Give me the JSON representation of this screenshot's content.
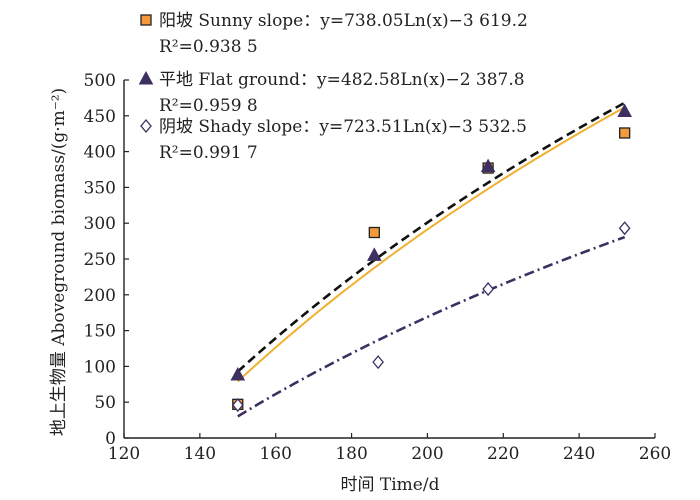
{
  "chart_data": {
    "type": "scatter",
    "xlabel": "时间 Time/d",
    "ylabel": "地上生物量 Aboveground biomass/(g·m⁻²)",
    "xlim": [
      120,
      260
    ],
    "ylim": [
      0,
      500
    ],
    "xticks": [
      120,
      140,
      160,
      180,
      200,
      220,
      240,
      260
    ],
    "yticks": [
      0,
      50,
      100,
      150,
      200,
      250,
      300,
      350,
      400,
      450,
      500
    ],
    "series": [
      {
        "name": "阳坡 Sunny slope",
        "equation": "y=738.05Ln(x)−3 619.2",
        "r2": "R²=0.938 5",
        "a": 738.05,
        "b": -3619.2,
        "marker": "square",
        "marker_fill": "#f39a3c",
        "line_color": "#f0b030",
        "line_style": "solid",
        "points": [
          [
            150,
            47
          ],
          [
            186,
            287
          ],
          [
            216,
            377
          ],
          [
            252,
            426
          ]
        ]
      },
      {
        "name": "平地 Flat ground",
        "equation": "y=482.58Ln(x)−2 387.8",
        "r2": "R²=0.959 8",
        "a": 482.58,
        "b": -2387.8,
        "marker": "triangle",
        "marker_fill": "#3d3060",
        "line_color": "#3d3060",
        "line_style": "dashdot",
        "points": [
          [
            150,
            88
          ],
          [
            186,
            255
          ],
          [
            216,
            379
          ],
          [
            252,
            456
          ]
        ]
      },
      {
        "name": "阴坡 Shady slope",
        "equation": "y=723.51Ln(x)−3 532.5",
        "r2": "R²=0.991 7",
        "a": 723.51,
        "b": -3532.5,
        "marker": "diamond",
        "marker_fill": "#ffffff",
        "line_color": "#111111",
        "line_style": "dashed",
        "points": [
          [
            150,
            46
          ],
          [
            187,
            106
          ],
          [
            216,
            208
          ],
          [
            252,
            293
          ]
        ]
      }
    ]
  }
}
